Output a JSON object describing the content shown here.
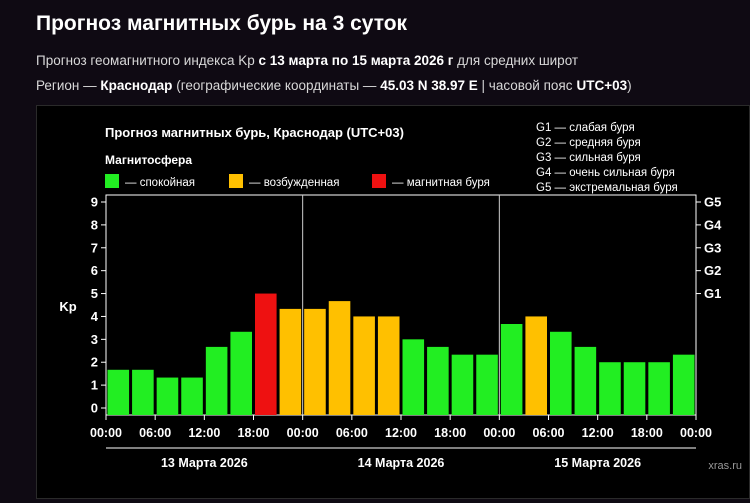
{
  "header": {
    "title": "Прогноз магнитных бурь на 3 суток",
    "line1_prefix": "Прогноз геомагнитного индекса Kp",
    "line1_range": "с 13 марта по 15 марта 2026 г",
    "line1_suffix": "для средних широт",
    "line2_prefix": "Регион —",
    "line2_city": "Краснодар",
    "line2_coords_prefix": "(географические координаты —",
    "line2_coords": "45.03 N 38.97 E",
    "line2_tz_prefix": "| часовой пояс",
    "line2_tz": "UTC+03",
    "line2_close": ")"
  },
  "chart_data": {
    "type": "bar",
    "title": "Прогноз магнитных бурь, Краснодар (UTC+03)",
    "legend_title": "Магнитосфера",
    "legend": [
      {
        "key": "calm",
        "label": "— спокойная",
        "color": "#22ee22"
      },
      {
        "key": "excited",
        "label": "— возбужденная",
        "color": "#ffc000"
      },
      {
        "key": "storm",
        "label": "— магнитная буря",
        "color": "#ee1111"
      }
    ],
    "g_scale_legend": [
      "G1 — слабая буря",
      "G2 — средняя буря",
      "G3 — сильная буря",
      "G4 — очень сильная буря",
      "G5 — экстремальная буря"
    ],
    "ylabel": "Kp",
    "ylim": [
      0,
      9
    ],
    "yticks": [
      0,
      1,
      2,
      3,
      4,
      5,
      6,
      7,
      8,
      9
    ],
    "right_ticks": [
      {
        "label": "G1",
        "kp": 5
      },
      {
        "label": "G2",
        "kp": 6
      },
      {
        "label": "G3",
        "kp": 7
      },
      {
        "label": "G4",
        "kp": 8
      },
      {
        "label": "G5",
        "kp": 9
      }
    ],
    "xticks": [
      "00:00",
      "06:00",
      "12:00",
      "18:00",
      "00:00",
      "06:00",
      "12:00",
      "18:00",
      "00:00",
      "06:00",
      "12:00",
      "18:00",
      "00:00"
    ],
    "days": [
      "13 Марта 2026",
      "14 Марта 2026",
      "15 Марта 2026"
    ],
    "series": [
      {
        "values": [
          1.67,
          1.67,
          1.33,
          1.33,
          2.67,
          3.33,
          5.0,
          4.33,
          4.33,
          4.67,
          4.0,
          4.0,
          3.0,
          2.67,
          2.33,
          2.33,
          3.67,
          4.0,
          3.33,
          2.67,
          2.0,
          2.0,
          2.0,
          2.33
        ],
        "levels": [
          "calm",
          "calm",
          "calm",
          "calm",
          "calm",
          "calm",
          "storm",
          "excited",
          "excited",
          "excited",
          "excited",
          "excited",
          "calm",
          "calm",
          "calm",
          "calm",
          "calm",
          "excited",
          "calm",
          "calm",
          "calm",
          "calm",
          "calm",
          "calm"
        ]
      }
    ],
    "grid": false,
    "legend_position": "top-left"
  },
  "watermark": "xras.ru"
}
